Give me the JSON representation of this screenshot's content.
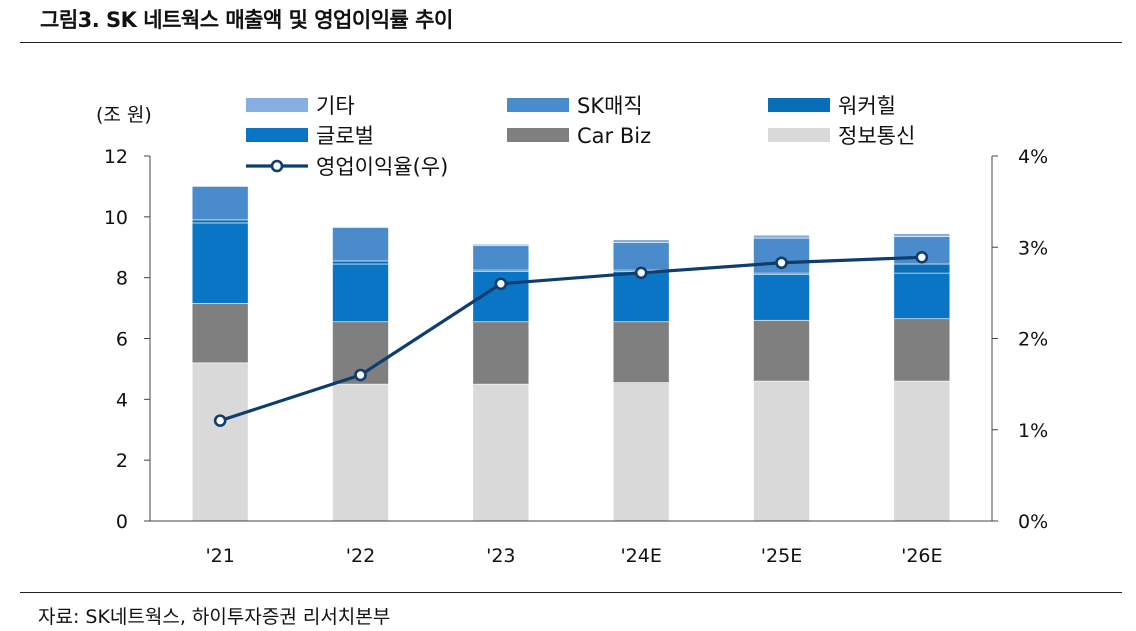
{
  "figure": {
    "title": "그림3.  SK 네트웍스 매출액 및 영업이익률 추이",
    "source": "자료: SK네트웍스, 하이투자증권 리서치본부"
  },
  "chart_data": {
    "type": "bar",
    "stacked": true,
    "title": "",
    "ylabel": "(조 원)",
    "categories": [
      "'21",
      "'22",
      "'23",
      "'24E",
      "'25E",
      "'26E"
    ],
    "ylim": [
      0,
      12
    ],
    "yticks": [
      "0",
      "2",
      "4",
      "6",
      "8",
      "10",
      "12"
    ],
    "y2lim": [
      0,
      4
    ],
    "y2ticks": [
      "0%",
      "1%",
      "2%",
      "3%",
      "4%"
    ],
    "legend_position": "top",
    "series": [
      {
        "name": "정보통신",
        "color": "#d9d9d9",
        "values": [
          5.2,
          4.5,
          4.5,
          4.55,
          4.6,
          4.6
        ]
      },
      {
        "name": "Car Biz",
        "color": "#7f7f7f",
        "values": [
          1.95,
          2.05,
          2.05,
          2.0,
          2.0,
          2.05
        ]
      },
      {
        "name": "글로벌",
        "color": "#0b75c5",
        "values": [
          2.65,
          1.9,
          1.65,
          1.65,
          1.5,
          1.5
        ]
      },
      {
        "name": "워커힐",
        "color": "#0a6db8",
        "values": [
          0.1,
          0.1,
          0.05,
          0.05,
          0.05,
          0.3
        ]
      },
      {
        "name": "SK매직",
        "color": "#4a8bcc",
        "values": [
          1.1,
          1.1,
          0.8,
          0.9,
          1.15,
          0.9
        ]
      },
      {
        "name": "기타",
        "color": "#86aee0",
        "values": [
          0.0,
          0.0,
          0.05,
          0.1,
          0.1,
          0.1
        ]
      }
    ],
    "line_series": {
      "name": "영업이익율(우)",
      "color": "#0e3d6e",
      "axis": "right",
      "values": [
        1.1,
        1.6,
        2.6,
        2.72,
        2.83,
        2.89
      ]
    }
  }
}
